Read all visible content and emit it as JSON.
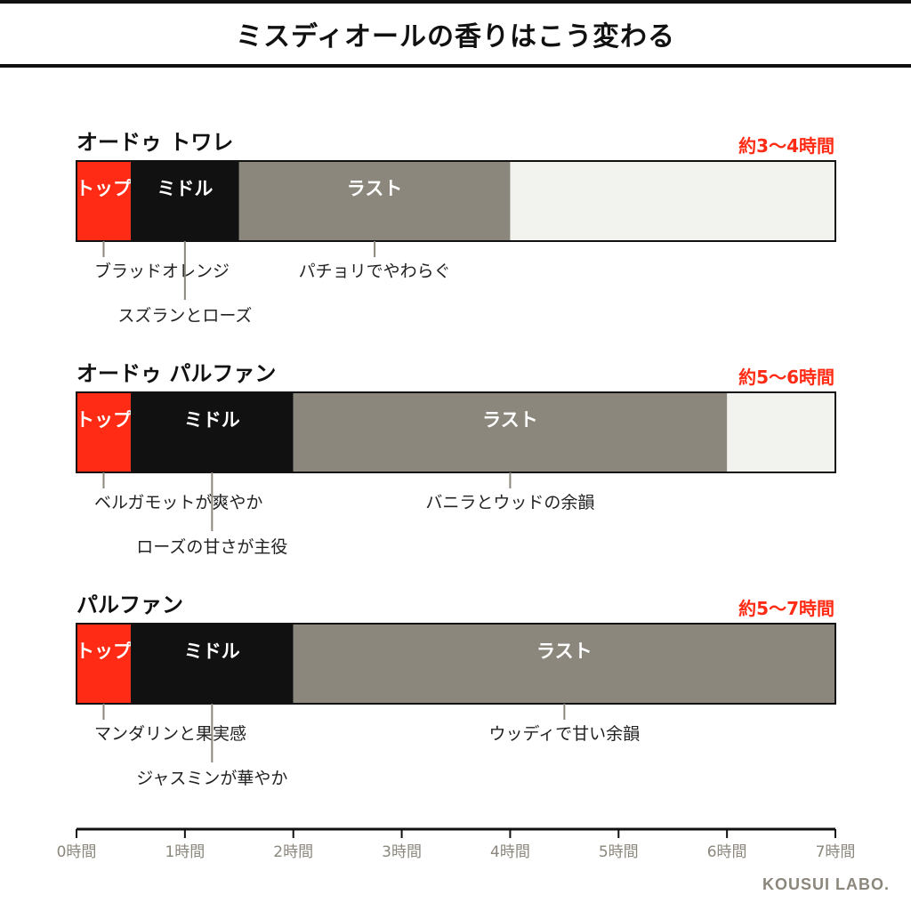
{
  "title": "ミスディオールの香りはこう変わる",
  "brand": "KOUSUI LABO.",
  "colors": {
    "top": "#ff2b14",
    "middle": "#111111",
    "last": "#8b877c",
    "remainder": "#f2f2ee",
    "duration": "#ff2b14",
    "axis_label": "#8b877c"
  },
  "chart_data": {
    "type": "bar",
    "orientation": "horizontal-stacked",
    "xlabel": "",
    "xlim": [
      0,
      7
    ],
    "x_ticks": [
      "0時間",
      "1時間",
      "2時間",
      "3時間",
      "4時間",
      "5時間",
      "6時間",
      "7時間"
    ],
    "phases": [
      "トップ",
      "ミドル",
      "ラスト"
    ],
    "products": [
      {
        "name": "オードゥ トワレ",
        "duration": "約3〜4時間",
        "segments": [
          {
            "label": "トップ",
            "start": 0,
            "end": 0.5,
            "key": "top"
          },
          {
            "label": "ミドル",
            "start": 0.5,
            "end": 1.5,
            "key": "middle"
          },
          {
            "label": "ラスト",
            "start": 1.5,
            "end": 4.0,
            "key": "last"
          }
        ],
        "notes": [
          {
            "text": "ブラッドオレンジ",
            "at": 0.25,
            "level": 1
          },
          {
            "text": "スズランとローズ",
            "at": 1.0,
            "level": 2
          },
          {
            "text": "パチョリでやわらぐ",
            "at": 2.75,
            "level": 1
          }
        ]
      },
      {
        "name": "オードゥ パルファン",
        "duration": "約5〜6時間",
        "segments": [
          {
            "label": "トップ",
            "start": 0,
            "end": 0.5,
            "key": "top"
          },
          {
            "label": "ミドル",
            "start": 0.5,
            "end": 2.0,
            "key": "middle"
          },
          {
            "label": "ラスト",
            "start": 2.0,
            "end": 6.0,
            "key": "last"
          }
        ],
        "notes": [
          {
            "text": "ベルガモットが爽やか",
            "at": 0.25,
            "level": 1
          },
          {
            "text": "ローズの甘さが主役",
            "at": 1.25,
            "level": 2
          },
          {
            "text": "バニラとウッドの余韻",
            "at": 4.0,
            "level": 1
          }
        ]
      },
      {
        "name": "パルファン",
        "duration": "約5〜7時間",
        "segments": [
          {
            "label": "トップ",
            "start": 0,
            "end": 0.5,
            "key": "top"
          },
          {
            "label": "ミドル",
            "start": 0.5,
            "end": 2.0,
            "key": "middle"
          },
          {
            "label": "ラスト",
            "start": 2.0,
            "end": 7.0,
            "key": "last"
          }
        ],
        "notes": [
          {
            "text": "マンダリンと果実感",
            "at": 0.25,
            "level": 1
          },
          {
            "text": "ジャスミンが華やか",
            "at": 1.25,
            "level": 2
          },
          {
            "text": "ウッディで甘い余韻",
            "at": 4.5,
            "level": 1
          }
        ]
      }
    ]
  }
}
